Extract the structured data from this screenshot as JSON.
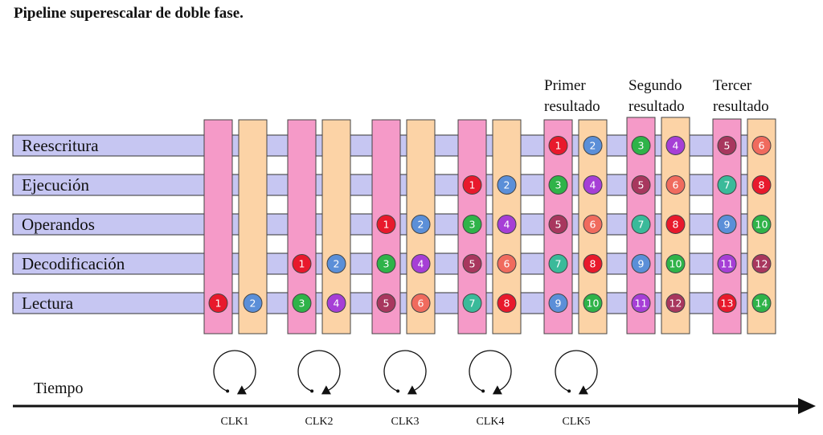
{
  "title": "Pipeline superescalar de doble fase.",
  "stages": [
    "Reescritura",
    "Ejecución",
    "Operandos",
    "Decodificación",
    "Lectura"
  ],
  "result_headers": [
    {
      "line1": "Primer",
      "line2": "resultado"
    },
    {
      "line1": "Segundo",
      "line2": "resultado"
    },
    {
      "line1": "Tercer",
      "line2": "resultado"
    }
  ],
  "clocks": [
    "CLK1",
    "CLK2",
    "CLK3",
    "CLK4",
    "CLK5"
  ],
  "time_label": "Tiempo",
  "colors": {
    "pink_phase": "#f59ac8",
    "orange_phase": "#fcd3a6",
    "stage_band": "#c6c6f2",
    "red": "#e8192c",
    "blue": "#5b8fd8",
    "green": "#2fb349",
    "violet": "#a63fd6",
    "maroon": "#a8375e",
    "salmon": "#f06b5e",
    "teal": "#3aba9a"
  },
  "instructions": [
    {
      "num": "1",
      "color": "red"
    },
    {
      "num": "2",
      "color": "blue"
    },
    {
      "num": "3",
      "color": "green"
    },
    {
      "num": "4",
      "color": "violet"
    },
    {
      "num": "5",
      "color": "maroon"
    },
    {
      "num": "6",
      "color": "salmon"
    },
    {
      "num": "7",
      "color": "teal"
    },
    {
      "num": "8",
      "color": "red"
    },
    {
      "num": "9",
      "color": "blue"
    },
    {
      "num": "10",
      "color": "green"
    },
    {
      "num": "11",
      "color": "violet"
    },
    {
      "num": "12",
      "color": "maroon"
    },
    {
      "num": "13",
      "color": "red"
    },
    {
      "num": "14",
      "color": "green"
    }
  ]
}
